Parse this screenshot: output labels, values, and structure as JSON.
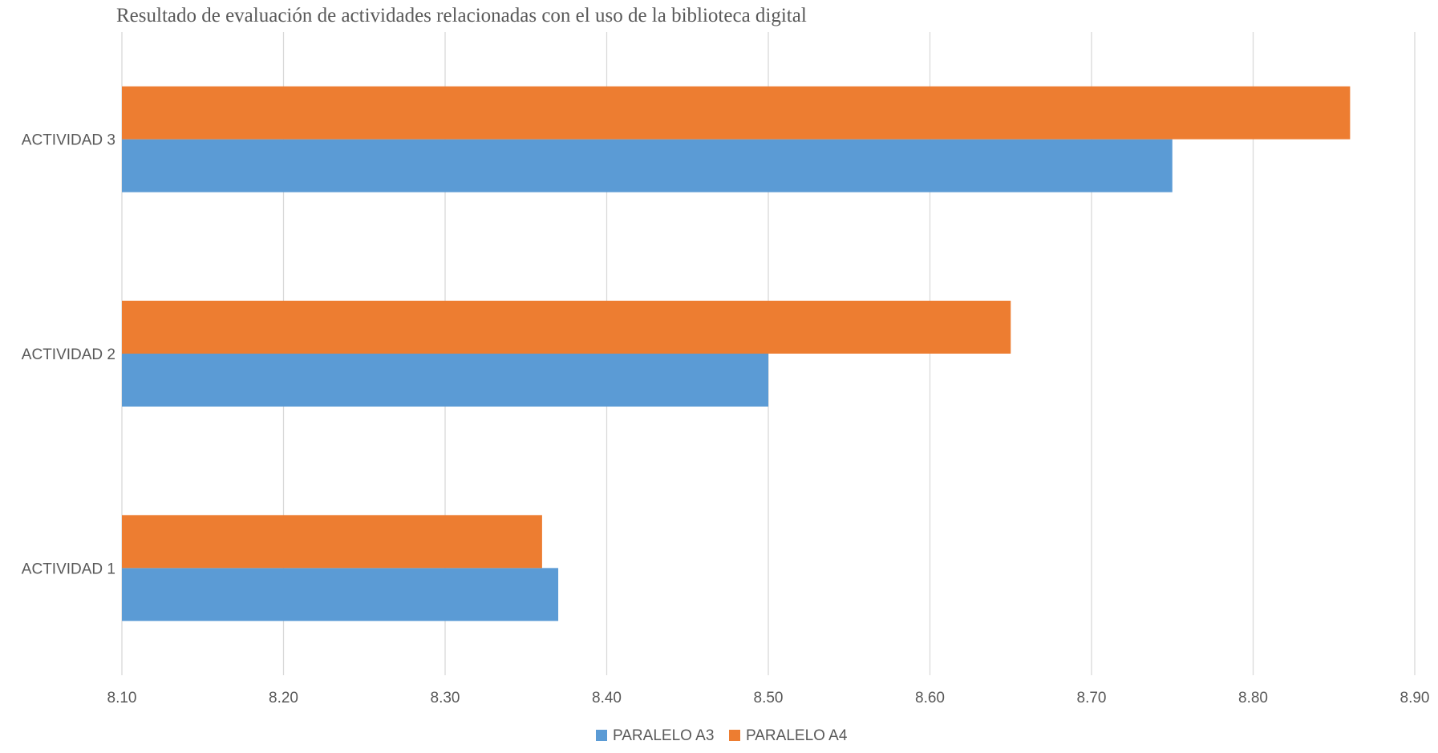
{
  "chart_data": {
    "type": "bar",
    "orientation": "horizontal",
    "title": "Resultado de evaluación de actividades relacionadas con el uso de la biblioteca digital",
    "xlabel": "",
    "ylabel": "",
    "categories": [
      "ACTIVIDAD 1",
      "ACTIVIDAD 2",
      "ACTIVIDAD 3"
    ],
    "series": [
      {
        "name": "PARALELO A3",
        "color": "#5B9BD5",
        "values": [
          8.37,
          8.5,
          8.75
        ]
      },
      {
        "name": "PARALELO A4",
        "color": "#ED7D31",
        "values": [
          8.36,
          8.65,
          8.86
        ]
      }
    ],
    "xlim": [
      8.1,
      8.9
    ],
    "xticks": [
      "8.10",
      "8.20",
      "8.30",
      "8.40",
      "8.50",
      "8.60",
      "8.70",
      "8.80",
      "8.90"
    ],
    "grid": true,
    "legend_position": "bottom",
    "colors": {
      "grid": "#D9D9D9",
      "axis_text": "#595959",
      "title_text": "#595959"
    }
  }
}
